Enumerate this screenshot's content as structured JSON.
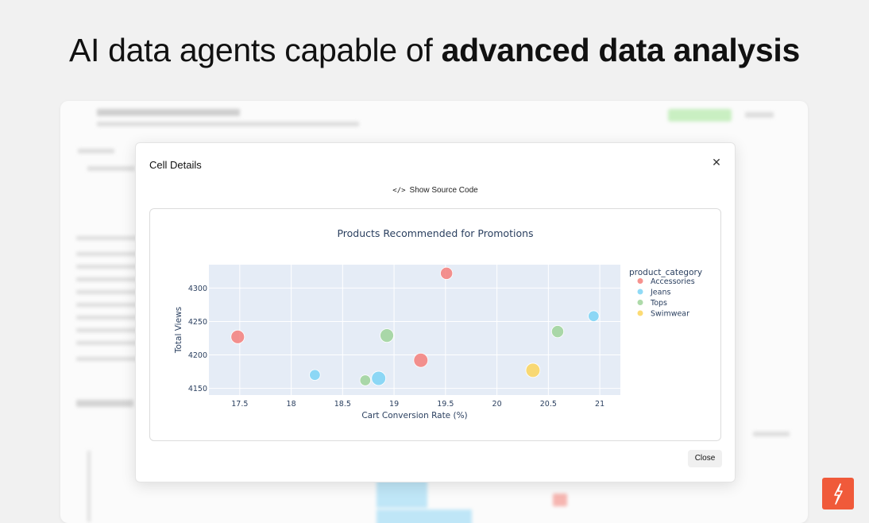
{
  "headline": {
    "regular": "AI data agents capable of ",
    "bold": "advanced data analysis"
  },
  "modal": {
    "title": "Cell Details",
    "show_source": "Show Source Code",
    "close_label": "Close"
  },
  "colors": {
    "Accessories": "#f47f7a",
    "Jeans": "#7dd3f5",
    "Tops": "#9fd49a",
    "Swimwear": "#fbd55c",
    "plot_bg": "#e5ecf6",
    "brand": "#f05a3a"
  },
  "chart_data": {
    "type": "scatter",
    "title": "Products Recommended for Promotions",
    "xlabel": "Cart Conversion Rate (%)",
    "ylabel": "Total Views",
    "xlim": [
      17.2,
      21.2
    ],
    "ylim": [
      4140,
      4335
    ],
    "x_ticks": [
      "17.5",
      "18",
      "18.5",
      "19",
      "19.5",
      "20",
      "20.5",
      "21"
    ],
    "y_ticks": [
      "4150",
      "4200",
      "4250",
      "4300"
    ],
    "legend_title": "product_category",
    "legend_position": "right",
    "grid": true,
    "series": [
      {
        "name": "Accessories",
        "points": [
          {
            "x": 17.48,
            "y": 4227,
            "s": 1.0
          },
          {
            "x": 19.51,
            "y": 4322,
            "s": 0.9
          },
          {
            "x": 19.26,
            "y": 4192,
            "s": 1.05
          }
        ]
      },
      {
        "name": "Jeans",
        "points": [
          {
            "x": 18.23,
            "y": 4170,
            "s": 0.8
          },
          {
            "x": 18.85,
            "y": 4165,
            "s": 1.05
          },
          {
            "x": 20.94,
            "y": 4258,
            "s": 0.8
          }
        ]
      },
      {
        "name": "Tops",
        "points": [
          {
            "x": 18.72,
            "y": 4162,
            "s": 0.8
          },
          {
            "x": 18.93,
            "y": 4229,
            "s": 1.0
          },
          {
            "x": 20.59,
            "y": 4235,
            "s": 0.9
          }
        ]
      },
      {
        "name": "Swimwear",
        "points": [
          {
            "x": 20.35,
            "y": 4177,
            "s": 1.05
          }
        ]
      }
    ]
  }
}
